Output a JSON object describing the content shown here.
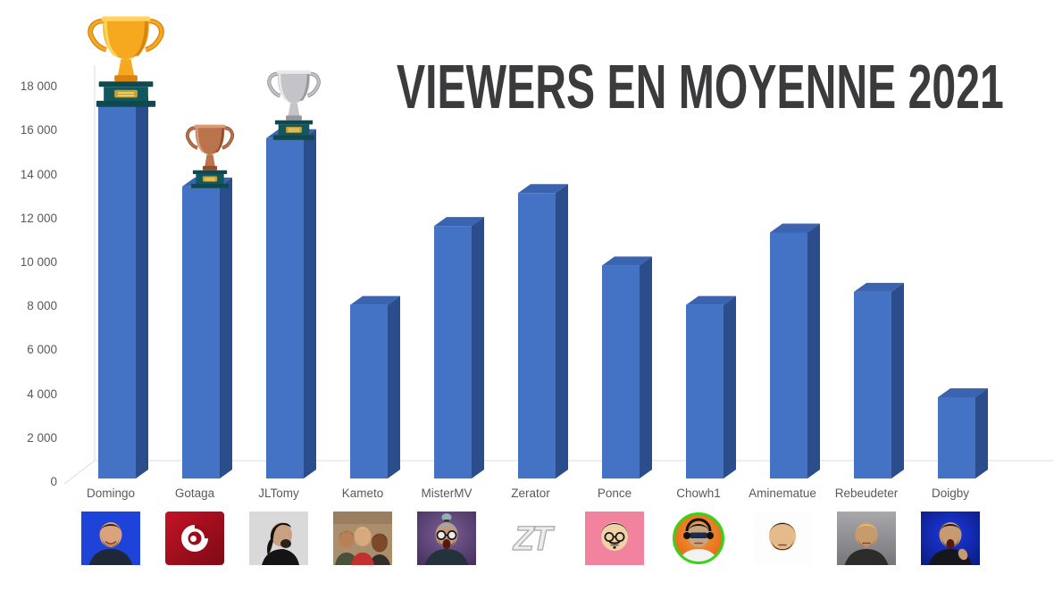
{
  "chart_data": {
    "type": "bar",
    "style": "3d-excel",
    "title": "VIEWERS EN MOYENNE 2021",
    "categories": [
      "Domingo",
      "Gotaga",
      "JLTomy",
      "Kameto",
      "MisterMV",
      "Zerator",
      "Ponce",
      "Chowh1",
      "Aminematue",
      "Rebeudeter",
      "Doigby"
    ],
    "values": [
      17000,
      13300,
      15500,
      7900,
      11500,
      13000,
      9700,
      7900,
      11200,
      8500,
      3700
    ],
    "xlabel": "",
    "ylabel": "",
    "ylim": [
      0,
      18000
    ],
    "ytick_step": 2000,
    "ytick_labels": [
      "0",
      "2 000",
      "4 000",
      "6 000",
      "8 000",
      "10 000",
      "12 000",
      "14 000",
      "16 000",
      "18 000"
    ],
    "grid": true,
    "legend": false,
    "bar_colors": {
      "front": "#4472C4",
      "side": "#2c4d8c",
      "top": "#3a63b0"
    },
    "gridline_color_major": "#dcdcdc",
    "gridline_color_minor": "#ececec",
    "axis_label_color": "#595959",
    "title_color": "#3b3b3d",
    "trophies": [
      {
        "metal": "gold",
        "streamer": "Domingo",
        "rank": 1
      },
      {
        "metal": "silver",
        "streamer": "JLTomy",
        "rank": 2
      },
      {
        "metal": "bronze",
        "streamer": "Gotaga",
        "rank": 3
      }
    ],
    "trophy_palettes": {
      "gold": {
        "main": "#F6A91F",
        "light": "#FFD45C",
        "dark": "#D98410"
      },
      "silver": {
        "main": "#C4C4C8",
        "light": "#E9E9EC",
        "dark": "#97979D"
      },
      "bronze": {
        "main": "#B9744B",
        "light": "#D99C74",
        "dark": "#8F4E2C"
      },
      "pedestal": "#12575e",
      "pedestal_dark": "#0e4950",
      "plaque": "#c8a02c",
      "plaque_light": "#f0d67e"
    }
  },
  "streamers": [
    {
      "name": "Domingo",
      "avatar": {
        "kind": "face",
        "bg": "#1d43d8",
        "skin": "#d9a47c",
        "hair": "#382313",
        "beard": "#43291a",
        "shirt": "#1f2836",
        "mouth": "smile"
      }
    },
    {
      "name": "Gotaga",
      "avatar": {
        "kind": "swirl-logo",
        "bg": "#c41325",
        "bg2": "#7d0a16",
        "logo": "#ffffff",
        "swirl_inner": "#9c0d1a"
      }
    },
    {
      "name": "JLTomy",
      "avatar": {
        "kind": "face-profile",
        "bg": "#d9d9d9",
        "skin": "#c9a082",
        "hair": "#17110b",
        "beard": "#2b221a",
        "shirt": "#141414"
      }
    },
    {
      "name": "Kameto",
      "avatar": {
        "kind": "group-photo",
        "bg": "#ab8e6b",
        "faces": [
          {
            "skin": "#b97f56",
            "hair": "#241a12",
            "shirt": "#49503c"
          },
          {
            "skin": "#d8a97f",
            "hair": "#e8ca6a",
            "shirt": "#c23030"
          },
          {
            "skin": "#7c4a2b",
            "hair": "#1c1410",
            "shirt": "#332e2c"
          }
        ]
      }
    },
    {
      "name": "MisterMV",
      "avatar": {
        "kind": "face",
        "bg": "#7b5f94",
        "bg2": "#463060",
        "radial": true,
        "skin": "#c2997c",
        "hair": "#8fb0b4",
        "hair_style": "topknot",
        "beard": "#241f28",
        "glasses": "round-glint",
        "mouth": "open",
        "shirt": "#23323c"
      }
    },
    {
      "name": "Zerator",
      "avatar": {
        "kind": "zt-logo",
        "bg": "#ffffff",
        "logo_fill": "#ececec",
        "logo_stroke": "#a8a8a8",
        "text": "ZT"
      }
    },
    {
      "name": "Ponce",
      "avatar": {
        "kind": "face",
        "bg": "#f2839e",
        "skin": "#f0d2a8",
        "hair": "#151210",
        "glasses": "round",
        "mustache": true,
        "mouth": "neutral",
        "big_head": true
      }
    },
    {
      "name": "Chowh1",
      "avatar": {
        "kind": "face",
        "bg": "#f59b38",
        "bg2": "#dd5d12",
        "radial": true,
        "ring": "#35d415",
        "circle": true,
        "skin": "#c9a47c",
        "hair": "#20160e",
        "glasses": "shades",
        "headphones": true,
        "shirt": "#f2f2f2",
        "mouth": "neutral"
      }
    },
    {
      "name": "Aminematue",
      "avatar": {
        "kind": "face",
        "bg": "#fdfdfd",
        "skin": "#e6bb8b",
        "hair": "#141414",
        "beard": "#141414",
        "mouth": "neutral",
        "big_head": true
      }
    },
    {
      "name": "Rebeudeter",
      "avatar": {
        "kind": "face",
        "bg": "#a8a8ac",
        "bg2": "#77777b",
        "vgrad": true,
        "skin": "#c79b6c",
        "hair": "#d9bd72",
        "beard": "#6e4a28",
        "shirt": "#2e2c2a",
        "mouth": "neutral"
      }
    },
    {
      "name": "Doigby",
      "avatar": {
        "kind": "face",
        "bg": "#1d3ae2",
        "bg2": "#0a1a7e",
        "radial": true,
        "skin": "#c89a72",
        "hair": "#26180f",
        "beard": "#26180f",
        "shirt": "#16171d",
        "mouth": "open",
        "point_hand": true
      }
    }
  ]
}
